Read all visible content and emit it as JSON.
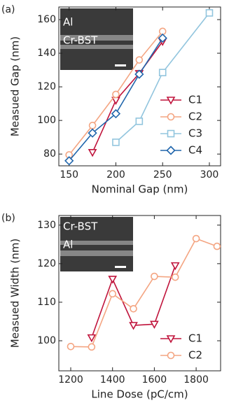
{
  "chart_data": [
    {
      "type": "line",
      "panel_label": "(a)",
      "x_label": "Nominal Gap (nm)",
      "y_label": "Measued Gap (nm)",
      "inset_labels": [
        "Al",
        "Cr-BST"
      ],
      "xlim": [
        139,
        312
      ],
      "ylim": [
        73,
        167.5
      ],
      "xticks": [
        150,
        200,
        250,
        300
      ],
      "yticks": [
        80,
        100,
        120,
        140,
        160
      ],
      "legend": "lower right",
      "series": [
        {
          "name": "C1",
          "color": "#c0143c",
          "marker": "triangle-down",
          "x": [
            175,
            200,
            225,
            250
          ],
          "values": [
            81,
            112,
            128,
            147
          ]
        },
        {
          "name": "C2",
          "color": "#f4a582",
          "marker": "circle",
          "x": [
            150,
            175,
            200,
            225,
            250
          ],
          "values": [
            79.5,
            97,
            115.5,
            136,
            153
          ]
        },
        {
          "name": "C3",
          "color": "#92c5de",
          "marker": "square",
          "x": [
            200,
            225,
            250,
            300
          ],
          "values": [
            87,
            99.5,
            128.5,
            164
          ]
        },
        {
          "name": "C4",
          "color": "#2166ac",
          "marker": "diamond",
          "x": [
            150,
            175,
            200,
            225,
            250
          ],
          "values": [
            76,
            92.5,
            104,
            127.5,
            149
          ]
        }
      ]
    },
    {
      "type": "line",
      "panel_label": "(b)",
      "x_label": "Line Dose (pC/cm)",
      "y_label": "Measued Width (nm)",
      "inset_labels": [
        "Cr-BST",
        "Al"
      ],
      "xlim": [
        1143,
        1917
      ],
      "ylim": [
        92.2,
        132.5
      ],
      "xticks": [
        1200,
        1400,
        1600,
        1800
      ],
      "yticks": [
        100,
        110,
        120,
        130
      ],
      "legend": "lower right",
      "series": [
        {
          "name": "C1",
          "color": "#c0143c",
          "marker": "triangle-down",
          "x": [
            1300,
            1400,
            1500,
            1600,
            1700
          ],
          "values": [
            100.8,
            116,
            104,
            104.3,
            119.5
          ]
        },
        {
          "name": "C2",
          "color": "#f4a582",
          "marker": "circle",
          "x": [
            1200,
            1300,
            1400,
            1500,
            1600,
            1700,
            1800,
            1900
          ],
          "values": [
            98.5,
            98.4,
            112.2,
            108.3,
            116.7,
            116.5,
            126.5,
            124.5
          ]
        }
      ]
    }
  ]
}
